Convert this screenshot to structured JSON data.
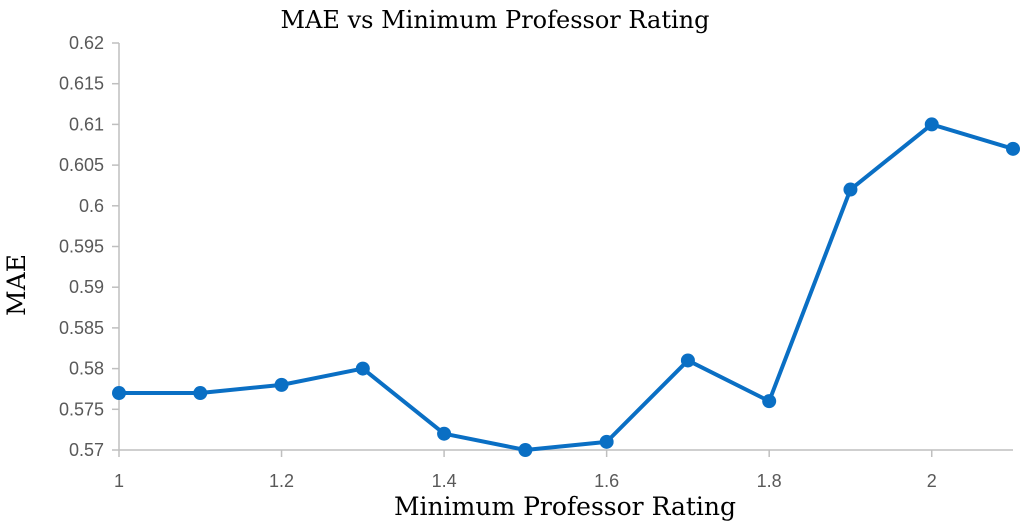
{
  "chart_data": {
    "type": "line",
    "title": "MAE vs Minimum Professor Rating",
    "xlabel": "Minimum Professor Rating",
    "ylabel": "MAE",
    "xlim": [
      1,
      2.1
    ],
    "ylim": [
      0.57,
      0.62
    ],
    "x_ticks": [
      1,
      1.2,
      1.4,
      1.6,
      1.8,
      2
    ],
    "x_tick_labels": [
      "1",
      "1.2",
      "1.4",
      "1.6",
      "1.8",
      "2"
    ],
    "y_ticks": [
      0.57,
      0.575,
      0.58,
      0.585,
      0.59,
      0.595,
      0.6,
      0.605,
      0.61,
      0.615,
      0.62
    ],
    "y_tick_labels": [
      "0.57",
      "0.575",
      "0.58",
      "0.585",
      "0.59",
      "0.595",
      "0.6",
      "0.605",
      "0.61",
      "0.615",
      "0.62"
    ],
    "grid": false,
    "legend": "none",
    "color": "#0a6fc4",
    "series": [
      {
        "x": [
          1,
          1.1,
          1.2,
          1.3,
          1.4,
          1.5,
          1.6,
          1.7,
          1.8,
          1.9,
          2,
          2.1
        ],
        "values": [
          0.577,
          0.577,
          0.578,
          0.58,
          0.572,
          0.57,
          0.571,
          0.581,
          0.576,
          0.602,
          0.61,
          0.607
        ]
      }
    ]
  }
}
